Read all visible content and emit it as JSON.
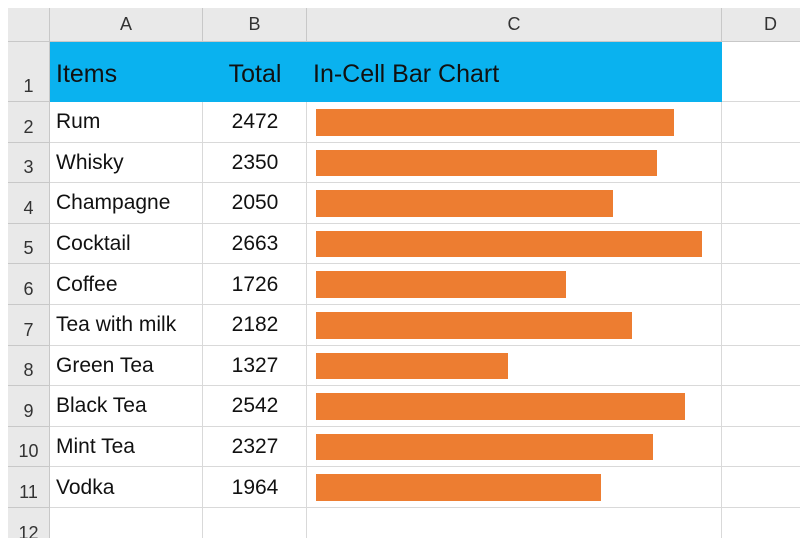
{
  "column_headers": [
    "A",
    "B",
    "C",
    "D"
  ],
  "row_headers": [
    "1",
    "2",
    "3",
    "4",
    "5",
    "6",
    "7",
    "8",
    "9",
    "10",
    "11",
    "12"
  ],
  "table": {
    "header": [
      "Items",
      "Total",
      "In-Cell Bar Chart"
    ],
    "rows": [
      [
        "Rum",
        2472
      ],
      [
        "Whisky",
        2350
      ],
      [
        "Champagne",
        2050
      ],
      [
        "Cocktail",
        2663
      ],
      [
        "Coffee",
        1726
      ],
      [
        "Tea with milk",
        2182
      ],
      [
        "Green Tea",
        1327
      ],
      [
        "Black Tea",
        2542
      ],
      [
        "Mint Tea",
        2327
      ],
      [
        "Vodka",
        1964
      ]
    ]
  },
  "bar_color": "#ed7d31",
  "header_color": "#0ab2ef"
}
